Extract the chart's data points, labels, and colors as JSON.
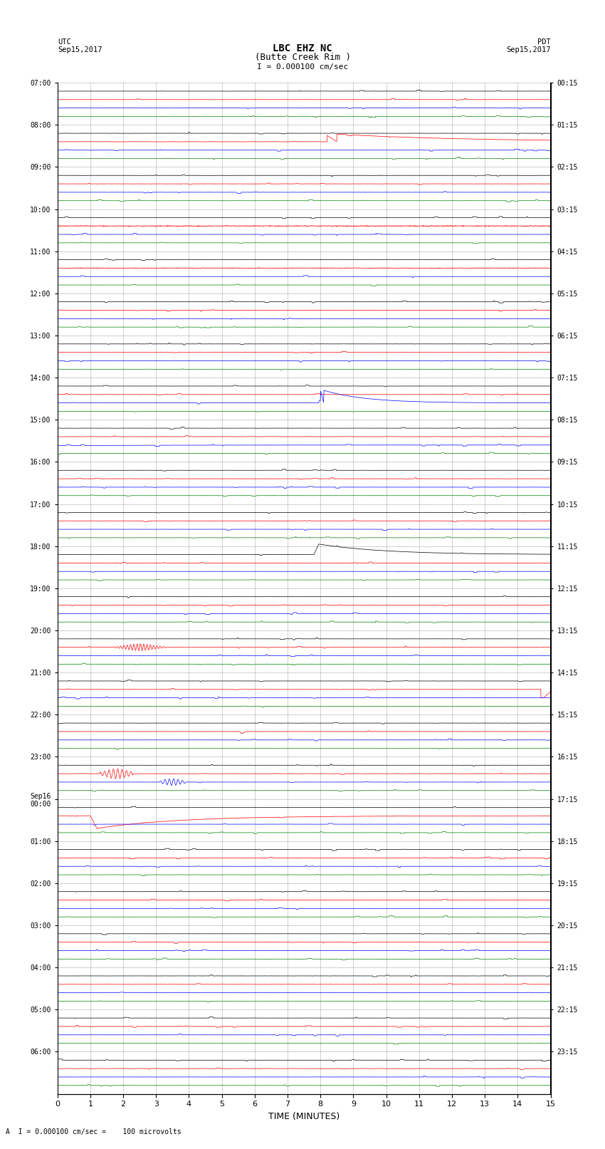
{
  "title_line1": "LBC EHZ NC",
  "title_line2": "(Butte Creek Rim )",
  "scale_label": "I = 0.000100 cm/sec",
  "bottom_label": "A  I = 0.000100 cm/sec =    100 microvolts",
  "utc_label": "UTC\nSep15,2017",
  "pdt_label": "PDT\nSep15,2017",
  "xlabel": "TIME (MINUTES)",
  "left_times": [
    "07:00",
    "08:00",
    "09:00",
    "10:00",
    "11:00",
    "12:00",
    "13:00",
    "14:00",
    "15:00",
    "16:00",
    "17:00",
    "18:00",
    "19:00",
    "20:00",
    "21:00",
    "22:00",
    "23:00",
    "Sep16\n00:00",
    "01:00",
    "02:00",
    "03:00",
    "04:00",
    "05:00",
    "06:00"
  ],
  "right_times": [
    "00:15",
    "01:15",
    "02:15",
    "03:15",
    "04:15",
    "05:15",
    "06:15",
    "07:15",
    "08:15",
    "09:15",
    "10:15",
    "11:15",
    "12:15",
    "13:15",
    "14:15",
    "15:15",
    "16:15",
    "17:15",
    "18:15",
    "19:15",
    "20:15",
    "21:15",
    "22:15",
    "23:15"
  ],
  "n_rows": 24,
  "n_minutes": 15,
  "bg_color": "#ffffff",
  "grid_color": "#888888",
  "trace_colors": [
    "#000000",
    "#ff0000",
    "#0000ff",
    "#008000"
  ],
  "fig_width": 8.5,
  "fig_height": 16.13,
  "dpi": 100,
  "xmin": 0,
  "xmax": 15,
  "xticks": [
    0,
    1,
    2,
    3,
    4,
    5,
    6,
    7,
    8,
    9,
    10,
    11,
    12,
    13,
    14,
    15
  ]
}
